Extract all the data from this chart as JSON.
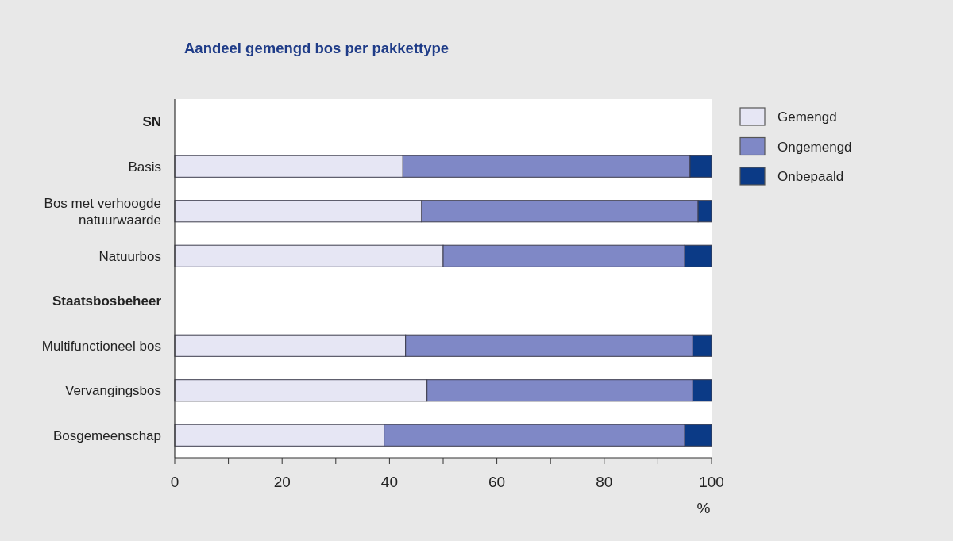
{
  "chart_data": {
    "type": "bar",
    "orientation": "horizontal",
    "stacked": true,
    "title": "Aandeel gemengd bos per pakkettype",
    "categories": [
      "SN",
      "Basis",
      "Bos met verhoogde natuurwaarde",
      "Natuurbos",
      "Staatsbosbeheer",
      "Multifunctioneel bos",
      "Vervangingsbos",
      "Bosgemeenschap"
    ],
    "series": [
      {
        "name": "Gemengd",
        "color": "#e6e6f4",
        "values": [
          null,
          42.5,
          46,
          50,
          null,
          43,
          47,
          39
        ]
      },
      {
        "name": "Ongemengd",
        "color": "#7f88c6",
        "values": [
          null,
          53.5,
          51.5,
          45,
          null,
          53.5,
          49.5,
          56
        ]
      },
      {
        "name": "Onbepaald",
        "color": "#0b3a86",
        "values": [
          null,
          4,
          2.5,
          5,
          null,
          3.5,
          3.5,
          5
        ]
      }
    ],
    "xlim": [
      0,
      100
    ],
    "xticks": [
      0,
      {
        "value": 10,
        "label": null
      },
      20,
      {
        "value": 30,
        "label": null
      },
      40,
      {
        "value": 50,
        "label": null
      },
      60,
      {
        "value": 70,
        "label": null
      },
      80,
      {
        "value": 90,
        "label": null
      },
      100
    ],
    "xlabel": "%",
    "legend": "top right"
  }
}
